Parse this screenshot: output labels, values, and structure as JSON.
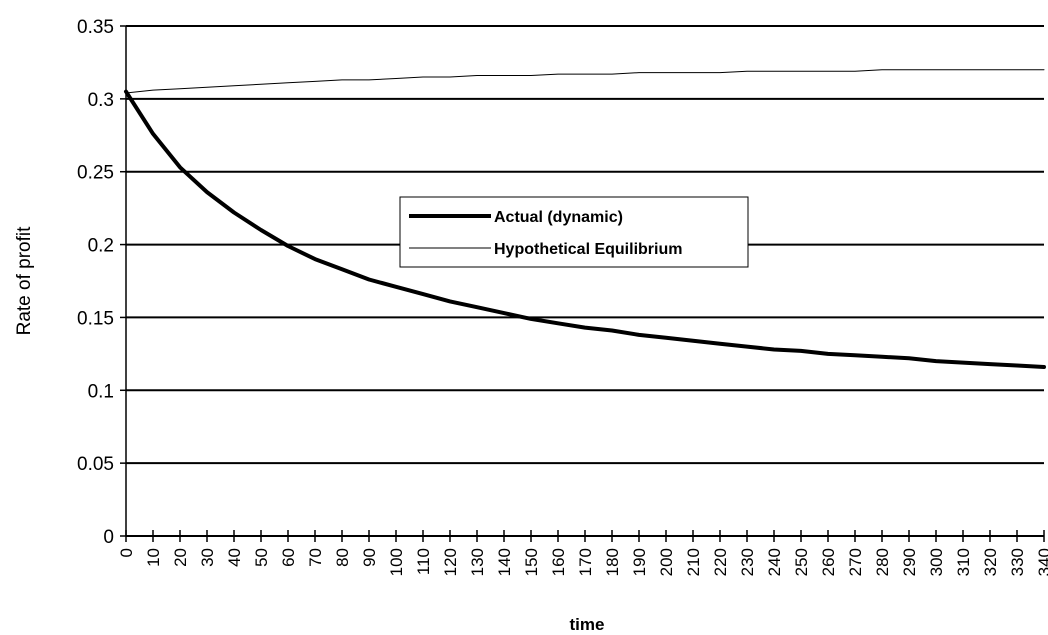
{
  "chart_data": {
    "type": "line",
    "title": "",
    "xlabel": "time",
    "ylabel": "Rate of profit",
    "xlim": [
      0,
      340
    ],
    "ylim": [
      0,
      0.35
    ],
    "x_ticks": [
      "0",
      "10",
      "20",
      "30",
      "40",
      "50",
      "60",
      "70",
      "80",
      "90",
      "100",
      "110",
      "120",
      "130",
      "140",
      "150",
      "160",
      "170",
      "180",
      "190",
      "200",
      "210",
      "220",
      "230",
      "240",
      "250",
      "260",
      "270",
      "280",
      "290",
      "300",
      "310",
      "320",
      "330",
      "340"
    ],
    "y_ticks": [
      "0",
      "0.05",
      "0.1",
      "0.15",
      "0.2",
      "0.25",
      "0.3",
      "0.35"
    ],
    "grid": "horizontal",
    "legend_position": "center",
    "series": [
      {
        "name": "Actual (dynamic)",
        "color": "#000000",
        "style": "thick",
        "x": [
          0,
          10,
          20,
          30,
          40,
          50,
          60,
          70,
          80,
          90,
          100,
          110,
          120,
          130,
          140,
          150,
          160,
          170,
          180,
          190,
          200,
          210,
          220,
          230,
          240,
          250,
          260,
          270,
          280,
          290,
          300,
          310,
          320,
          330,
          340
        ],
        "values": [
          0.305,
          0.276,
          0.253,
          0.236,
          0.222,
          0.21,
          0.199,
          0.19,
          0.183,
          0.176,
          0.171,
          0.166,
          0.161,
          0.157,
          0.153,
          0.149,
          0.146,
          0.143,
          0.141,
          0.138,
          0.136,
          0.134,
          0.132,
          0.13,
          0.128,
          0.127,
          0.125,
          0.124,
          0.123,
          0.122,
          0.12,
          0.119,
          0.118,
          0.117,
          0.116
        ]
      },
      {
        "name": "Hypothetical Equilibrium",
        "color": "#000000",
        "style": "thin",
        "x": [
          0,
          10,
          20,
          30,
          40,
          50,
          60,
          70,
          80,
          90,
          100,
          110,
          120,
          130,
          140,
          150,
          160,
          170,
          180,
          190,
          200,
          210,
          220,
          230,
          240,
          250,
          260,
          270,
          280,
          290,
          300,
          310,
          320,
          330,
          340
        ],
        "values": [
          0.304,
          0.306,
          0.307,
          0.308,
          0.309,
          0.31,
          0.311,
          0.312,
          0.313,
          0.313,
          0.314,
          0.315,
          0.315,
          0.316,
          0.316,
          0.316,
          0.317,
          0.317,
          0.317,
          0.318,
          0.318,
          0.318,
          0.318,
          0.319,
          0.319,
          0.319,
          0.319,
          0.319,
          0.32,
          0.32,
          0.32,
          0.32,
          0.32,
          0.32,
          0.32
        ]
      }
    ]
  }
}
